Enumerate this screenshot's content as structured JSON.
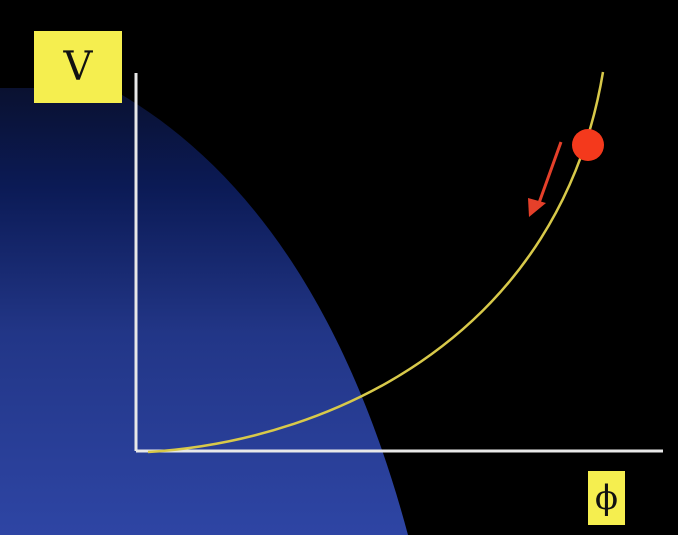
{
  "diagram": {
    "y_axis_label": "V",
    "x_axis_label": "ϕ",
    "colors": {
      "background": "#000000",
      "glow": "#2a3e9a",
      "axes": "#e8e8e8",
      "curve": "#d8c94a",
      "ball": "#f4391c",
      "arrow": "#e5402a",
      "label_box": "#f5ee4f"
    }
  }
}
